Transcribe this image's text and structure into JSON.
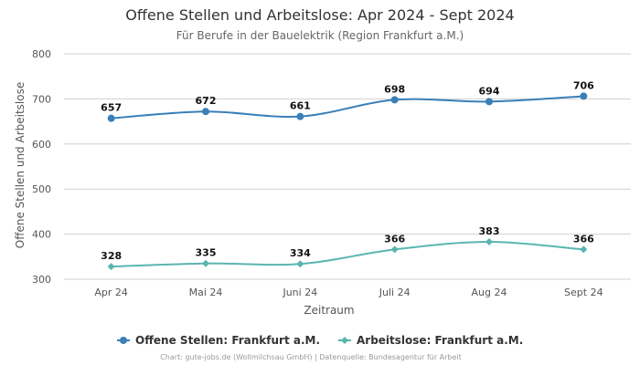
{
  "chart_data": {
    "type": "line",
    "title": "Offene Stellen und Arbeitslose: Apr 2024 - Sept 2024",
    "subtitle": "Für Berufe in der Bauelektrik (Region Frankfurt a.M.)",
    "xlabel": "Zeitraum",
    "ylabel": "Offene Stellen und Arbeitslose",
    "categories": [
      "Apr 24",
      "Mai 24",
      "Juni 24",
      "Juli 24",
      "Aug 24",
      "Sept 24"
    ],
    "ylim": [
      300,
      800
    ],
    "yticks": [
      300,
      400,
      500,
      600,
      700,
      800
    ],
    "grid": true,
    "legend_position": "bottom-center",
    "series": [
      {
        "name": "Offene Stellen: Frankfurt a.M.",
        "values": [
          657,
          672,
          661,
          698,
          694,
          706
        ],
        "color": "#3a7fb8",
        "marker": "circle"
      },
      {
        "name": "Arbeitslose: Frankfurt a.M.",
        "values": [
          328,
          335,
          334,
          366,
          383,
          366
        ],
        "color": "#5ab5b0",
        "marker": "diamond"
      }
    ],
    "source": "Chart: gute-jobs.de (Wollmilchsau GmbH) | Datenquelle: Bundesagentur für Arbeit"
  }
}
